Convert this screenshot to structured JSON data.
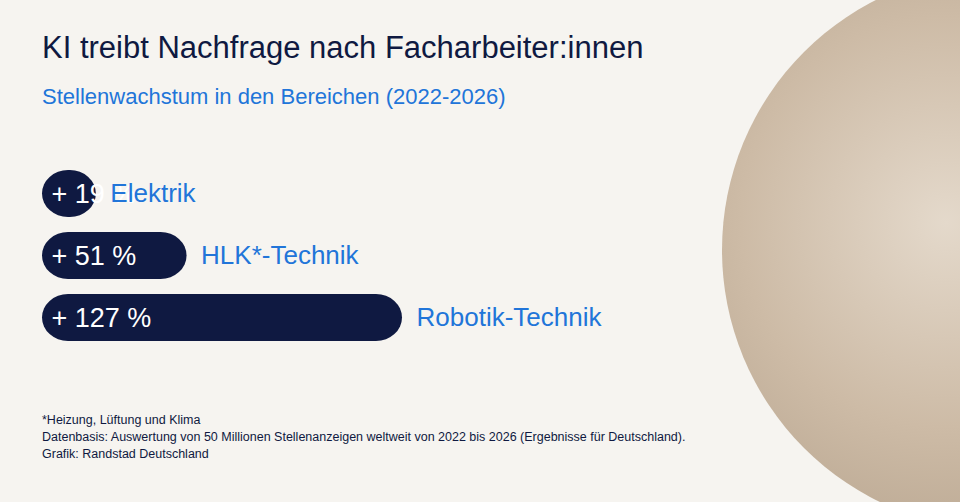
{
  "chart_data": {
    "type": "bar",
    "title": "KI treibt Nachfrage nach Facharbeiter:innen",
    "subtitle": "Stellenwachstum in den Bereichen (2022-2026)",
    "categories": [
      "Elektrik",
      "HLK*-Technik",
      "Robotik-Technik"
    ],
    "values": [
      19,
      51,
      127
    ],
    "value_labels": [
      "+ 19 %",
      "+ 51 %",
      "+ 127 %"
    ],
    "color": "#0f1941",
    "orientation": "horizontal",
    "data_labels": true,
    "tick_labels": false,
    "notes": [
      "*Heizung, Lüftung und Klima",
      "Datenbasis: Auswertung von 50 Millionen Stellenanzeigen weltweit von 2022 bis 2026 (Ergebnisse für Deutschland).",
      "Grafik: Randstad Deutschland"
    ]
  }
}
